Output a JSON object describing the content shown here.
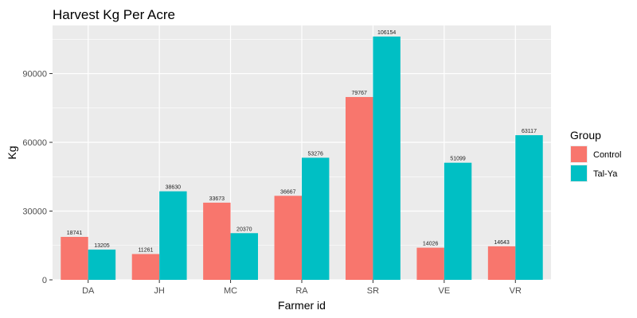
{
  "chart_data": {
    "type": "bar",
    "title": "Harvest Kg Per Acre",
    "xlabel": "Farmer id",
    "ylabel": "Kg",
    "categories": [
      "DA",
      "JH",
      "MC",
      "RA",
      "SR",
      "VE",
      "VR"
    ],
    "series": [
      {
        "name": "Control",
        "color": "#F8766D",
        "values": [
          18741,
          11261,
          33673,
          36667,
          79767,
          14026,
          14643
        ]
      },
      {
        "name": "Tal-Ya",
        "color": "#00BFC4",
        "values": [
          13205,
          38630,
          20370,
          53276,
          106154,
          51099,
          63117
        ]
      }
    ],
    "y_ticks": [
      0,
      30000,
      60000,
      90000
    ],
    "y_tick_labels": [
      "0",
      "30000",
      "60000",
      "90000"
    ],
    "ylim": [
      0,
      111000
    ],
    "legend": {
      "title": "Group",
      "placement": "right"
    },
    "grid": true,
    "panel_background": "#EBEBEB"
  }
}
